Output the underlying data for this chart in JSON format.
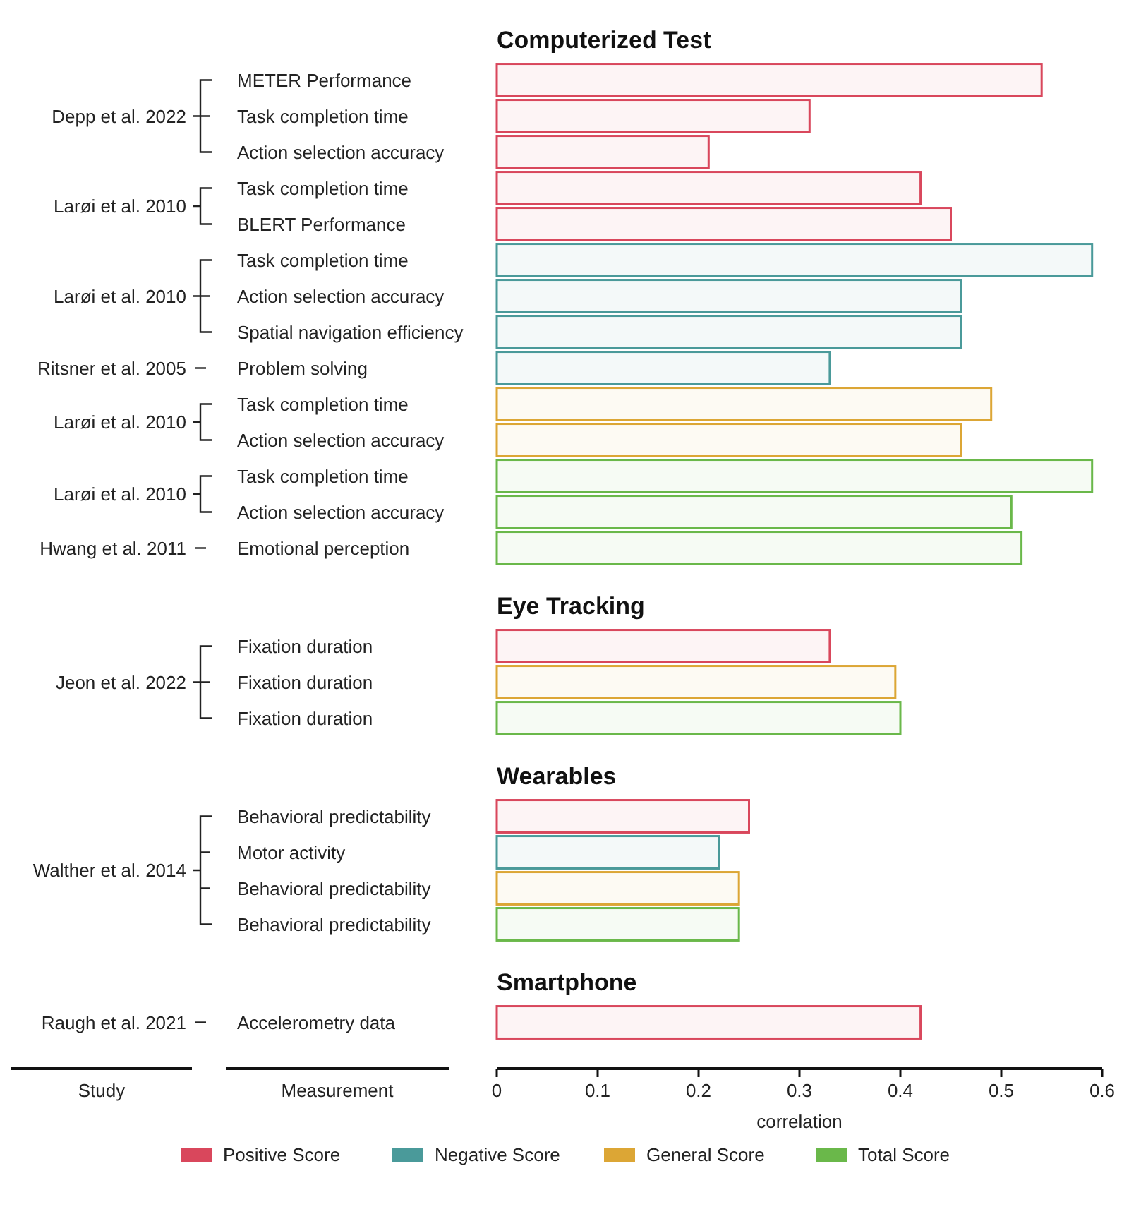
{
  "chart_data": [
    {
      "type": "bar",
      "orientation": "horizontal",
      "title": "Computerized Test",
      "ylabel": "Depp et al. 2022",
      "categories": [
        "METER Performance",
        "Task completion time",
        "Action selection accuracy"
      ],
      "xlim": [
        0,
        0.6
      ],
      "tick_labels": "y",
      "series": [
        {
          "name": "Positive Score",
          "color": "#d9475c",
          "values": [
            0.54,
            0.31,
            0.21
          ]
        }
      ]
    },
    {
      "type": "bar",
      "orientation": "horizontal",
      "ylabel": "Larøi et al. 2010",
      "categories": [
        "Task completion time",
        "BLERT Performance"
      ],
      "xlim": [
        0,
        0.6
      ],
      "tick_labels": "y",
      "series": [
        {
          "name": "Positive Score",
          "color": "#d9475c",
          "values": [
            0.42,
            0.45
          ]
        }
      ]
    },
    {
      "type": "bar",
      "orientation": "horizontal",
      "ylabel": "Larøi et al. 2010",
      "categories": [
        "Task completion time",
        "Action selection accuracy",
        "Spatial navigation efficiency"
      ],
      "xlim": [
        0,
        0.6
      ],
      "tick_labels": "y",
      "series": [
        {
          "name": "Negative Score",
          "color": "#4a9a9a",
          "values": [
            0.59,
            0.46,
            0.46
          ]
        }
      ]
    },
    {
      "type": "bar",
      "orientation": "horizontal",
      "ylabel": "Ritsner et al. 2005",
      "categories": [
        "Problem solving"
      ],
      "xlim": [
        0,
        0.6
      ],
      "tick_labels": "y",
      "series": [
        {
          "name": "Negative Score",
          "color": "#4a9a9a",
          "values": [
            0.33
          ]
        }
      ]
    },
    {
      "type": "bar",
      "orientation": "horizontal",
      "ylabel": "Larøi et al. 2010",
      "categories": [
        "Task completion time",
        "Action selection accuracy"
      ],
      "xlim": [
        0,
        0.6
      ],
      "tick_labels": "y",
      "series": [
        {
          "name": "General Score",
          "color": "#dca635",
          "values": [
            0.49,
            0.46
          ]
        }
      ]
    },
    {
      "type": "bar",
      "orientation": "horizontal",
      "ylabel": "Larøi et al. 2010",
      "categories": [
        "Task completion time",
        "Action selection accuracy"
      ],
      "xlim": [
        0,
        0.6
      ],
      "tick_labels": "y",
      "series": [
        {
          "name": "Total Score",
          "color": "#6ab84a",
          "values": [
            0.59,
            0.51
          ]
        }
      ]
    },
    {
      "type": "bar",
      "orientation": "horizontal",
      "ylabel": "Hwang et al. 2011",
      "categories": [
        "Emotional perception"
      ],
      "xlim": [
        0,
        0.6
      ],
      "tick_labels": "y",
      "series": [
        {
          "name": "Total Score",
          "color": "#6ab84a",
          "values": [
            0.52
          ]
        }
      ]
    },
    {
      "type": "bar",
      "orientation": "horizontal",
      "title": "Eye Tracking",
      "ylabel": "Jeon et al. 2022",
      "categories": [
        "Fixation duration",
        "Fixation duration",
        "Fixation duration"
      ],
      "xlim": [
        0,
        0.6
      ],
      "tick_labels": "y",
      "series": [
        {
          "name": "Positive Score",
          "color": "#d9475c",
          "values": [
            0.33,
            null,
            null
          ]
        },
        {
          "name": "General Score",
          "color": "#dca635",
          "values": [
            null,
            0.395,
            null
          ]
        },
        {
          "name": "Total Score",
          "color": "#6ab84a",
          "values": [
            null,
            null,
            0.4
          ]
        }
      ]
    },
    {
      "type": "bar",
      "orientation": "horizontal",
      "title": "Wearables",
      "ylabel": "Walther et al. 2014",
      "categories": [
        "Behavioral predictability",
        "Motor activity",
        "Behavioral predictability",
        "Behavioral predictability"
      ],
      "xlim": [
        0,
        0.6
      ],
      "tick_labels": "y",
      "series": [
        {
          "name": "Positive Score",
          "color": "#d9475c",
          "values": [
            0.25,
            null,
            null,
            null
          ]
        },
        {
          "name": "Negative Score",
          "color": "#4a9a9a",
          "values": [
            null,
            0.22,
            null,
            null
          ]
        },
        {
          "name": "General Score",
          "color": "#dca635",
          "values": [
            null,
            null,
            0.24,
            null
          ]
        },
        {
          "name": "Total Score",
          "color": "#6ab84a",
          "values": [
            null,
            null,
            null,
            0.24
          ]
        }
      ]
    },
    {
      "type": "bar",
      "orientation": "horizontal",
      "title": "Smartphone",
      "ylabel": "Raugh et al. 2021",
      "categories": [
        "Accelerometry data"
      ],
      "xlim": [
        0,
        0.6
      ],
      "xticks": [
        0,
        0.1,
        0.2,
        0.3,
        0.4,
        0.5,
        0.6
      ],
      "xlabel": "correlation",
      "legend": "bottom",
      "annotations": [
        "Study",
        "Measurement"
      ],
      "series": [
        {
          "name": "Positive Score",
          "color": "#d9475c",
          "values": [
            0.42
          ]
        }
      ]
    }
  ]
}
